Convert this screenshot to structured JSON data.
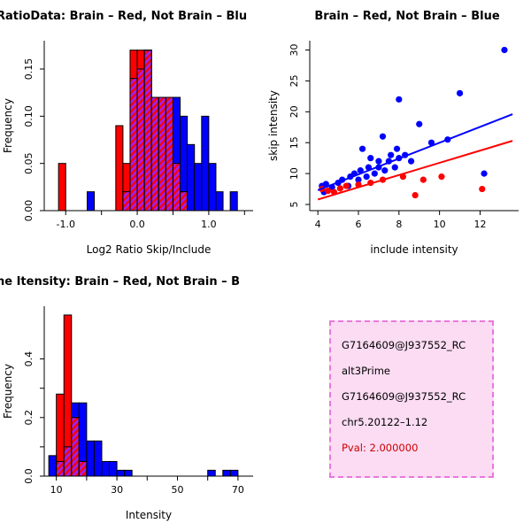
{
  "page": {
    "background": "#FFFFFF"
  },
  "colors": {
    "brain": "#FF0000",
    "not_brain": "#0000FF",
    "overlap_hatch": "#A020F0"
  },
  "chart_data": [
    {
      "type": "histogram",
      "title": "RatioData: Brain – Red, Not Brain – Blu",
      "title_anchor": "start",
      "title_x": -4,
      "xlabel": "Log2 Ratio Skip/Include",
      "ylabel": "Frequency",
      "bin_start": -1.1,
      "bin_width": 0.1,
      "series": [
        {
          "name": "Not Brain (Blue)",
          "color": "#0000FF",
          "values": [
            0,
            0,
            0,
            0,
            0.02,
            0,
            0,
            0,
            0,
            0.02,
            0.14,
            0.15,
            0.17,
            0.12,
            0.12,
            0.12,
            0.12,
            0.1,
            0.07,
            0.05,
            0.1,
            0.05,
            0.02,
            0,
            0.02,
            0
          ]
        },
        {
          "name": "Brain (Red)",
          "color": "#FF0000",
          "values": [
            0.05,
            0,
            0,
            0,
            0,
            0,
            0,
            0,
            0.09,
            0.05,
            0.17,
            0.17,
            0.17,
            0.12,
            0.12,
            0.12,
            0.05,
            0.02,
            0,
            0,
            0,
            0,
            0,
            0,
            0,
            0
          ]
        }
      ],
      "overlap_color": "#A020F0",
      "xlim": [
        -1.3,
        1.62
      ],
      "ylim": [
        0,
        0.18
      ],
      "xticks": [
        -1.0,
        -0.5,
        0.0,
        0.5,
        1.0,
        1.5
      ],
      "xtick_labels": [
        "-1.0",
        "",
        "0.0",
        "",
        "1.0",
        ""
      ],
      "yticks": [
        0,
        0.05,
        0.1,
        0.15
      ],
      "ytick_labels": [
        "0.00",
        "0.05",
        "0.10",
        "0.15"
      ],
      "grid": false
    },
    {
      "type": "scatter",
      "title": "Brain – Red, Not Brain – Blue",
      "title_anchor": "middle",
      "title_x": 160,
      "xlabel": "include intensity",
      "ylabel": "skip intensity",
      "series": [
        {
          "name": "Not Brain (Blue)",
          "color": "#0000FF",
          "points": [
            [
              4.2,
              8
            ],
            [
              4.3,
              7
            ],
            [
              4.4,
              8.3
            ],
            [
              4.7,
              7.8
            ],
            [
              5,
              8.5
            ],
            [
              5.2,
              9
            ],
            [
              5.5,
              8
            ],
            [
              5.6,
              9.5
            ],
            [
              5.8,
              10
            ],
            [
              6,
              9
            ],
            [
              6.1,
              10.5
            ],
            [
              6.2,
              14
            ],
            [
              6.4,
              9.5
            ],
            [
              6.5,
              11
            ],
            [
              6.6,
              12.5
            ],
            [
              6.8,
              10
            ],
            [
              7,
              11
            ],
            [
              7,
              12
            ],
            [
              7.2,
              16
            ],
            [
              7.3,
              10.5
            ],
            [
              7.5,
              12
            ],
            [
              7.6,
              13
            ],
            [
              7.8,
              11
            ],
            [
              7.9,
              14
            ],
            [
              8,
              12.5
            ],
            [
              8,
              22
            ],
            [
              8.3,
              13
            ],
            [
              8.6,
              12
            ],
            [
              9,
              18
            ],
            [
              9.6,
              15
            ],
            [
              10.4,
              15.5
            ],
            [
              11,
              23
            ],
            [
              12.2,
              10
            ],
            [
              13.2,
              30
            ]
          ]
        },
        {
          "name": "Brain (Red)",
          "color": "#FF0000",
          "points": [
            [
              4.2,
              7.5
            ],
            [
              4.5,
              7.2
            ],
            [
              4.8,
              7
            ],
            [
              5.1,
              7.6
            ],
            [
              5.4,
              8
            ],
            [
              6,
              8.2
            ],
            [
              6.6,
              8.5
            ],
            [
              7.2,
              9
            ],
            [
              8.2,
              9.5
            ],
            [
              8.8,
              6.5
            ],
            [
              9.2,
              9
            ],
            [
              10.1,
              9.5
            ],
            [
              12.1,
              7.5
            ]
          ]
        }
      ],
      "fit_lines": [
        {
          "name": "not-brain-fit",
          "color": "#0000FF",
          "from": [
            4,
            7.3
          ],
          "to": [
            13.6,
            19.6
          ]
        },
        {
          "name": "brain-fit",
          "color": "#FF0000",
          "from": [
            4,
            5.8
          ],
          "to": [
            13.6,
            15.3
          ]
        }
      ],
      "xlim": [
        3.6,
        13.9
      ],
      "ylim": [
        4,
        31.5
      ],
      "xticks": [
        4,
        6,
        8,
        10,
        12
      ],
      "xtick_labels": [
        "4",
        "6",
        "8",
        "10",
        "12"
      ],
      "yticks": [
        5,
        10,
        15,
        20,
        25,
        30
      ],
      "ytick_labels": [
        "5",
        "10",
        "15",
        "20",
        "25",
        "30"
      ],
      "grid": false
    },
    {
      "type": "histogram",
      "title": "ne Itensity: Brain – Red, Not Brain – B",
      "title_anchor": "start",
      "title_x": -4,
      "xlabel": "Intensity",
      "ylabel": "Frequency",
      "bin_start": 7.5,
      "bin_width": 2.5,
      "series": [
        {
          "name": "Not Brain (Blue)",
          "color": "#0000FF",
          "values": [
            0.07,
            0.05,
            0.1,
            0.25,
            0.25,
            0.12,
            0.12,
            0.05,
            0.05,
            0.02,
            0.02,
            0,
            0,
            0,
            0,
            0,
            0,
            0,
            0,
            0,
            0,
            0.02,
            0,
            0.02,
            0.02,
            0
          ]
        },
        {
          "name": "Brain (Red)",
          "color": "#FF0000",
          "values": [
            0,
            0.28,
            0.55,
            0.2,
            0.05,
            0,
            0,
            0,
            0,
            0,
            0,
            0,
            0,
            0,
            0,
            0,
            0,
            0,
            0,
            0,
            0,
            0,
            0,
            0,
            0,
            0
          ]
        }
      ],
      "overlap_color": "#A020F0",
      "xlim": [
        6,
        75
      ],
      "ylim": [
        0,
        0.58
      ],
      "xticks": [
        10,
        20,
        30,
        40,
        50,
        60,
        70
      ],
      "xtick_labels": [
        "10",
        "",
        "30",
        "",
        "50",
        "",
        "70"
      ],
      "yticks": [
        0,
        0.1,
        0.2,
        0.3,
        0.4
      ],
      "ytick_labels": [
        "0.0",
        "",
        "0.2",
        "",
        "0.4"
      ],
      "grid": false
    }
  ],
  "info_box": {
    "bg": "#FBDCF3",
    "border_color": "#E878DC",
    "lines": [
      "G7164609@J937552_RC",
      "alt3Prime",
      "G7164609@J937552_RC",
      "chr5.20122–1.12"
    ],
    "pval": "Pval: 2.000000",
    "pval_color": "#CC0000"
  }
}
